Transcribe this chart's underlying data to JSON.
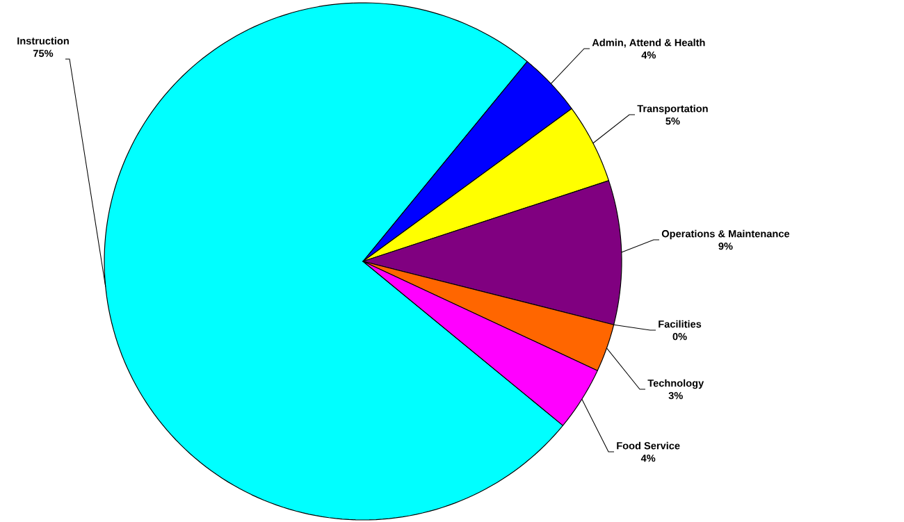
{
  "chart_data": {
    "type": "pie",
    "categories": [
      "Instruction",
      "Admin, Attend & Health",
      "Transportation",
      "Operations & Maintenance",
      "Facilities",
      "Technology",
      "Food Service"
    ],
    "values": [
      75,
      4,
      5,
      9,
      0,
      3,
      4
    ],
    "value_labels": [
      "75%",
      "4%",
      "5%",
      "9%",
      "0%",
      "3%",
      "4%"
    ],
    "colors": [
      "#00ffff",
      "#0000ff",
      "#ffff00",
      "#800080",
      "#993366",
      "#ff6600",
      "#ff00ff"
    ]
  }
}
